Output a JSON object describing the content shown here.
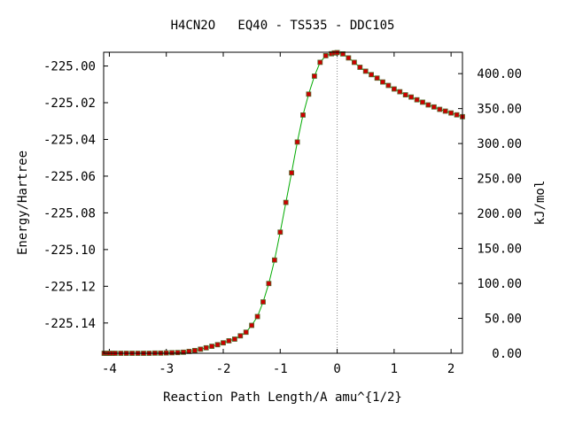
{
  "chart_data": {
    "type": "line",
    "title": "H4CN2O   EQ40 - TS535 - DDC105",
    "xlabel": "Reaction Path Length/A amu^{1/2}",
    "ylabel": "Energy/Hartree",
    "y2label": "kJ/mol",
    "xlim": [
      -4.1,
      2.2
    ],
    "ylim": [
      -225.1565,
      -224.9925
    ],
    "y2lim": [
      0.0,
      430.6
    ],
    "x_ticks": [
      -4,
      -3,
      -2,
      -1,
      0,
      1,
      2
    ],
    "x_tick_labels": [
      "-4",
      "-3",
      "-2",
      "-1",
      "0",
      "1",
      "2"
    ],
    "y_ticks": [
      -225.0,
      -225.02,
      -225.04,
      -225.06,
      -225.08,
      -225.1,
      -225.12,
      -225.14
    ],
    "y_tick_labels": [
      "-225.00",
      "-225.02",
      "-225.04",
      "-225.06",
      "-225.08",
      "-225.10",
      "-225.12",
      "-225.14"
    ],
    "y2_ticks": [
      0,
      50,
      100,
      150,
      200,
      250,
      300,
      350,
      400
    ],
    "y2_tick_labels": [
      "0.00",
      "50.00",
      "100.00",
      "150.00",
      "200.00",
      "250.00",
      "300.00",
      "350.00",
      "400.00"
    ],
    "ts_marker_x": 0.0,
    "grid": false,
    "line_color": "#00aa00",
    "marker_color": "#cc0000",
    "marker_edge_color": "#556b2f",
    "series": [
      {
        "x": [
          -4.09,
          -4.06,
          -4.03,
          -4.0,
          -3.95,
          -3.9,
          -3.8,
          -3.7,
          -3.6,
          -3.5,
          -3.4,
          -3.3,
          -3.2,
          -3.1,
          -3.0,
          -2.9,
          -2.8,
          -2.7,
          -2.6,
          -2.5,
          -2.4,
          -2.3,
          -2.2,
          -2.1,
          -2.0,
          -1.9,
          -1.8,
          -1.7,
          -1.6,
          -1.5,
          -1.4,
          -1.3,
          -1.2,
          -1.1,
          -1.0,
          -0.9,
          -0.8,
          -0.7,
          -0.6,
          -0.5,
          -0.4,
          -0.3,
          -0.2,
          -0.1,
          -0.05,
          0.0,
          0.1,
          0.2,
          0.3,
          0.4,
          0.5,
          0.6,
          0.7,
          0.8,
          0.9,
          1.0,
          1.1,
          1.2,
          1.3,
          1.4,
          1.5,
          1.6,
          1.7,
          1.8,
          1.9,
          2.0,
          2.1,
          2.2
        ],
        "y": [
          -225.1565,
          -225.1565,
          -225.1565,
          -225.1565,
          -225.1565,
          -225.1565,
          -225.1565,
          -225.1565,
          -225.1565,
          -225.1565,
          -225.1565,
          -225.1565,
          -225.1564,
          -225.1564,
          -225.1563,
          -225.1562,
          -225.1561,
          -225.1559,
          -225.1555,
          -225.155,
          -225.1543,
          -225.1535,
          -225.1527,
          -225.1518,
          -225.1508,
          -225.1497,
          -225.1488,
          -225.147,
          -225.145,
          -225.1413,
          -225.1365,
          -225.1285,
          -225.1185,
          -225.1057,
          -225.0905,
          -225.0743,
          -225.0582,
          -225.0414,
          -225.0267,
          -225.0153,
          -225.0055,
          -224.998,
          -224.9944,
          -224.9933,
          -224.9929,
          -224.9927,
          -224.9934,
          -224.9956,
          -224.998,
          -225.0007,
          -225.0028,
          -225.0047,
          -225.0066,
          -225.0087,
          -225.0106,
          -225.0125,
          -225.014,
          -225.0157,
          -225.0169,
          -225.0184,
          -225.0197,
          -225.0212,
          -225.0223,
          -225.0236,
          -225.0246,
          -225.0256,
          -225.0266,
          -225.0276
        ]
      }
    ]
  }
}
